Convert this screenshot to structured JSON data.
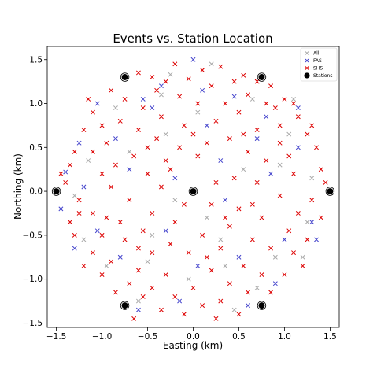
{
  "chart_data": {
    "type": "scatter",
    "title": "Events vs. Station Location",
    "xlabel": "Easting (km)",
    "ylabel": "Northing (km)",
    "xlim": [
      -1.6,
      1.6
    ],
    "ylim": [
      -1.55,
      1.65
    ],
    "xticks": [
      -1.5,
      -1.0,
      -0.5,
      0.0,
      0.5,
      1.0,
      1.5
    ],
    "xtick_labels": [
      "−1.5",
      "−1.0",
      "−0.5",
      "0.0",
      "0.5",
      "1.0",
      "1.5"
    ],
    "yticks": [
      -1.5,
      -1.0,
      -0.5,
      0.0,
      0.5,
      1.0,
      1.5
    ],
    "ytick_labels": [
      "−1.5",
      "−1.0",
      "−0.5",
      "0.0",
      "0.5",
      "1.0",
      "1.5"
    ],
    "grid": false,
    "legend_position": "top-right",
    "legend": [
      {
        "label": "All",
        "marker": "x",
        "color": "#aaaaaa"
      },
      {
        "label": "FAS",
        "marker": "x",
        "color": "#4444cc"
      },
      {
        "label": "SHS",
        "marker": "x",
        "color": "#dd0000"
      },
      {
        "label": "Stations",
        "marker": "circle",
        "color": "#000000"
      }
    ],
    "series": [
      {
        "name": "Stations",
        "marker": "circle",
        "color": "#000000",
        "points": [
          [
            -0.75,
            1.3
          ],
          [
            0.75,
            1.3
          ],
          [
            -1.5,
            0.0
          ],
          [
            0.0,
            0.0
          ],
          [
            1.5,
            0.0
          ],
          [
            -0.75,
            -1.3
          ],
          [
            0.75,
            -1.3
          ]
        ]
      },
      {
        "name": "All",
        "marker": "x",
        "color": "#aaaaaa",
        "points": [
          [
            -0.25,
            1.33
          ],
          [
            0.2,
            1.45
          ],
          [
            -0.85,
            0.95
          ],
          [
            1.05,
            0.65
          ],
          [
            -1.2,
            -0.55
          ],
          [
            0.35,
            -0.85
          ],
          [
            -0.45,
            -0.5
          ],
          [
            0.9,
            -0.75
          ],
          [
            -0.05,
            -1.0
          ],
          [
            1.3,
            0.15
          ],
          [
            -0.6,
            -1.25
          ],
          [
            0.55,
            0.25
          ],
          [
            -1.15,
            0.35
          ],
          [
            0.15,
            -0.3
          ],
          [
            -0.3,
            0.65
          ],
          [
            0.65,
            1.05
          ],
          [
            1.2,
            -0.75
          ],
          [
            -0.95,
            -0.85
          ],
          [
            0.45,
            -1.35
          ],
          [
            -0.2,
            -0.1
          ],
          [
            0.05,
            0.9
          ],
          [
            -1.3,
            -0.05
          ],
          [
            1.1,
            1.05
          ],
          [
            -0.7,
            0.45
          ],
          [
            0.3,
            -0.55
          ],
          [
            0.95,
            0.3
          ],
          [
            -0.5,
            -0.8
          ],
          [
            0.7,
            -1.1
          ],
          [
            -0.35,
            1.1
          ],
          [
            1.25,
            -0.35
          ]
        ]
      },
      {
        "name": "FAS",
        "marker": "x",
        "color": "#4444cc",
        "points": [
          [
            -0.35,
            1.2
          ],
          [
            0.0,
            1.5
          ],
          [
            -0.55,
            1.05
          ],
          [
            0.45,
            1.08
          ],
          [
            0.8,
            0.85
          ],
          [
            -1.05,
            1.0
          ],
          [
            -1.25,
            0.55
          ],
          [
            1.15,
            0.5
          ],
          [
            -1.4,
            0.22
          ],
          [
            0.3,
            0.35
          ],
          [
            -0.2,
            0.15
          ],
          [
            0.85,
            0.2
          ],
          [
            1.3,
            -0.35
          ],
          [
            -1.05,
            -0.45
          ],
          [
            -0.3,
            -0.45
          ],
          [
            0.5,
            -0.75
          ],
          [
            1.0,
            -0.55
          ],
          [
            -0.8,
            -0.75
          ],
          [
            -0.15,
            -1.25
          ],
          [
            0.6,
            -1.3
          ],
          [
            -0.6,
            -1.35
          ],
          [
            1.15,
            0.95
          ],
          [
            -1.45,
            -0.2
          ],
          [
            0.15,
            0.75
          ],
          [
            -0.7,
            0.25
          ],
          [
            0.35,
            -0.1
          ],
          [
            0.9,
            -1.05
          ],
          [
            -1.3,
            -0.65
          ],
          [
            -0.85,
            0.6
          ],
          [
            1.35,
            -0.55
          ],
          [
            0.05,
            -0.85
          ],
          [
            -0.45,
            0.95
          ],
          [
            0.7,
            0.6
          ],
          [
            -1.2,
            0.05
          ],
          [
            0.1,
            1.15
          ]
        ]
      },
      {
        "name": "SHS",
        "marker": "x",
        "color": "#dd0000",
        "points": [
          [
            -0.2,
            1.45
          ],
          [
            0.1,
            1.38
          ],
          [
            0.3,
            1.42
          ],
          [
            -0.45,
            1.3
          ],
          [
            -0.6,
            1.35
          ],
          [
            0.55,
            1.32
          ],
          [
            -0.05,
            1.28
          ],
          [
            0.45,
            1.25
          ],
          [
            -0.3,
            1.25
          ],
          [
            0.85,
            1.2
          ],
          [
            -0.9,
            1.15
          ],
          [
            0.2,
            1.2
          ],
          [
            -0.75,
            1.05
          ],
          [
            1.0,
            1.05
          ],
          [
            0.6,
            1.1
          ],
          [
            -0.15,
            1.08
          ],
          [
            0.35,
            1.0
          ],
          [
            -0.55,
            0.95
          ],
          [
            0.8,
            1.0
          ],
          [
            -1.1,
            0.9
          ],
          [
            -1.0,
            0.75
          ],
          [
            1.15,
            0.85
          ],
          [
            0.05,
            1.0
          ],
          [
            -0.35,
            0.85
          ],
          [
            0.5,
            0.9
          ],
          [
            -0.8,
            0.8
          ],
          [
            0.95,
            0.75
          ],
          [
            -1.2,
            0.7
          ],
          [
            1.25,
            0.65
          ],
          [
            -0.6,
            0.7
          ],
          [
            0.25,
            0.8
          ],
          [
            -0.1,
            0.75
          ],
          [
            0.7,
            0.7
          ],
          [
            -1.3,
            0.45
          ],
          [
            1.35,
            0.5
          ],
          [
            -0.95,
            0.55
          ],
          [
            -0.4,
            0.6
          ],
          [
            0.4,
            0.6
          ],
          [
            0.95,
            0.55
          ],
          [
            -0.15,
            0.5
          ],
          [
            0.15,
            0.55
          ],
          [
            -1.1,
            0.45
          ],
          [
            1.05,
            0.4
          ],
          [
            -0.65,
            0.4
          ],
          [
            0.6,
            0.45
          ],
          [
            -1.35,
            0.3
          ],
          [
            1.4,
            0.25
          ],
          [
            -0.85,
            0.3
          ],
          [
            0.8,
            0.35
          ],
          [
            -0.3,
            0.35
          ],
          [
            0.05,
            0.4
          ],
          [
            -1.0,
            0.2
          ],
          [
            1.1,
            0.2
          ],
          [
            -0.5,
            0.2
          ],
          [
            0.45,
            0.15
          ],
          [
            -1.4,
            0.1
          ],
          [
            1.45,
            0.1
          ],
          [
            -0.9,
            0.05
          ],
          [
            0.7,
            0.1
          ],
          [
            -0.35,
            0.05
          ],
          [
            0.25,
            0.1
          ],
          [
            -1.25,
            -0.1
          ],
          [
            1.3,
            -0.1
          ],
          [
            -0.7,
            -0.1
          ],
          [
            0.95,
            -0.05
          ],
          [
            -0.1,
            -0.15
          ],
          [
            0.5,
            -0.2
          ],
          [
            -1.1,
            -0.25
          ],
          [
            1.15,
            -0.25
          ],
          [
            -0.45,
            -0.25
          ],
          [
            0.2,
            -0.15
          ],
          [
            -1.35,
            -0.35
          ],
          [
            1.4,
            -0.3
          ],
          [
            -0.8,
            -0.35
          ],
          [
            0.75,
            -0.3
          ],
          [
            -0.2,
            -0.35
          ],
          [
            0.4,
            -0.4
          ],
          [
            -1.0,
            -0.5
          ],
          [
            1.05,
            -0.45
          ],
          [
            -0.55,
            -0.45
          ],
          [
            0.1,
            -0.5
          ],
          [
            -1.3,
            -0.5
          ],
          [
            1.25,
            -0.55
          ],
          [
            -0.75,
            -0.55
          ],
          [
            0.65,
            -0.55
          ],
          [
            -0.25,
            -0.6
          ],
          [
            0.3,
            -0.65
          ],
          [
            -1.1,
            -0.7
          ],
          [
            1.1,
            -0.7
          ],
          [
            -0.45,
            -0.7
          ],
          [
            0.85,
            -0.65
          ],
          [
            -0.05,
            -0.7
          ],
          [
            -0.9,
            -0.8
          ],
          [
            0.55,
            -0.85
          ],
          [
            -1.2,
            -0.85
          ],
          [
            1.2,
            -0.85
          ],
          [
            -0.6,
            -0.9
          ],
          [
            0.2,
            -0.9
          ],
          [
            -0.3,
            -0.95
          ],
          [
            0.75,
            -0.95
          ],
          [
            -1.0,
            -0.95
          ],
          [
            1.0,
            -0.95
          ],
          [
            -0.7,
            -1.05
          ],
          [
            0.4,
            -1.05
          ],
          [
            0.0,
            -1.1
          ],
          [
            -0.45,
            -1.1
          ],
          [
            0.6,
            -1.15
          ],
          [
            -0.85,
            -1.15
          ],
          [
            0.85,
            -1.15
          ],
          [
            -0.2,
            -1.2
          ],
          [
            0.3,
            -1.25
          ],
          [
            -0.55,
            -1.2
          ],
          [
            0.1,
            -1.3
          ],
          [
            -0.35,
            -1.35
          ],
          [
            0.5,
            -1.4
          ],
          [
            -0.1,
            -1.4
          ],
          [
            0.25,
            -1.45
          ],
          [
            -0.65,
            -1.45
          ],
          [
            1.1,
            1.0
          ],
          [
            -1.15,
            1.05
          ],
          [
            0.0,
            0.65
          ],
          [
            -0.5,
            0.5
          ],
          [
            0.55,
            0.65
          ],
          [
            -0.25,
            0.25
          ],
          [
            0.35,
            -0.3
          ],
          [
            -0.6,
            -0.65
          ],
          [
            0.9,
            0.95
          ],
          [
            -0.95,
            -0.3
          ],
          [
            0.15,
            -0.75
          ],
          [
            1.3,
            0.75
          ],
          [
            -1.25,
            -0.25
          ],
          [
            0.65,
            -0.15
          ],
          [
            -0.4,
            1.15
          ],
          [
            0.7,
            1.25
          ],
          [
            -1.45,
            0.2
          ]
        ]
      }
    ]
  }
}
